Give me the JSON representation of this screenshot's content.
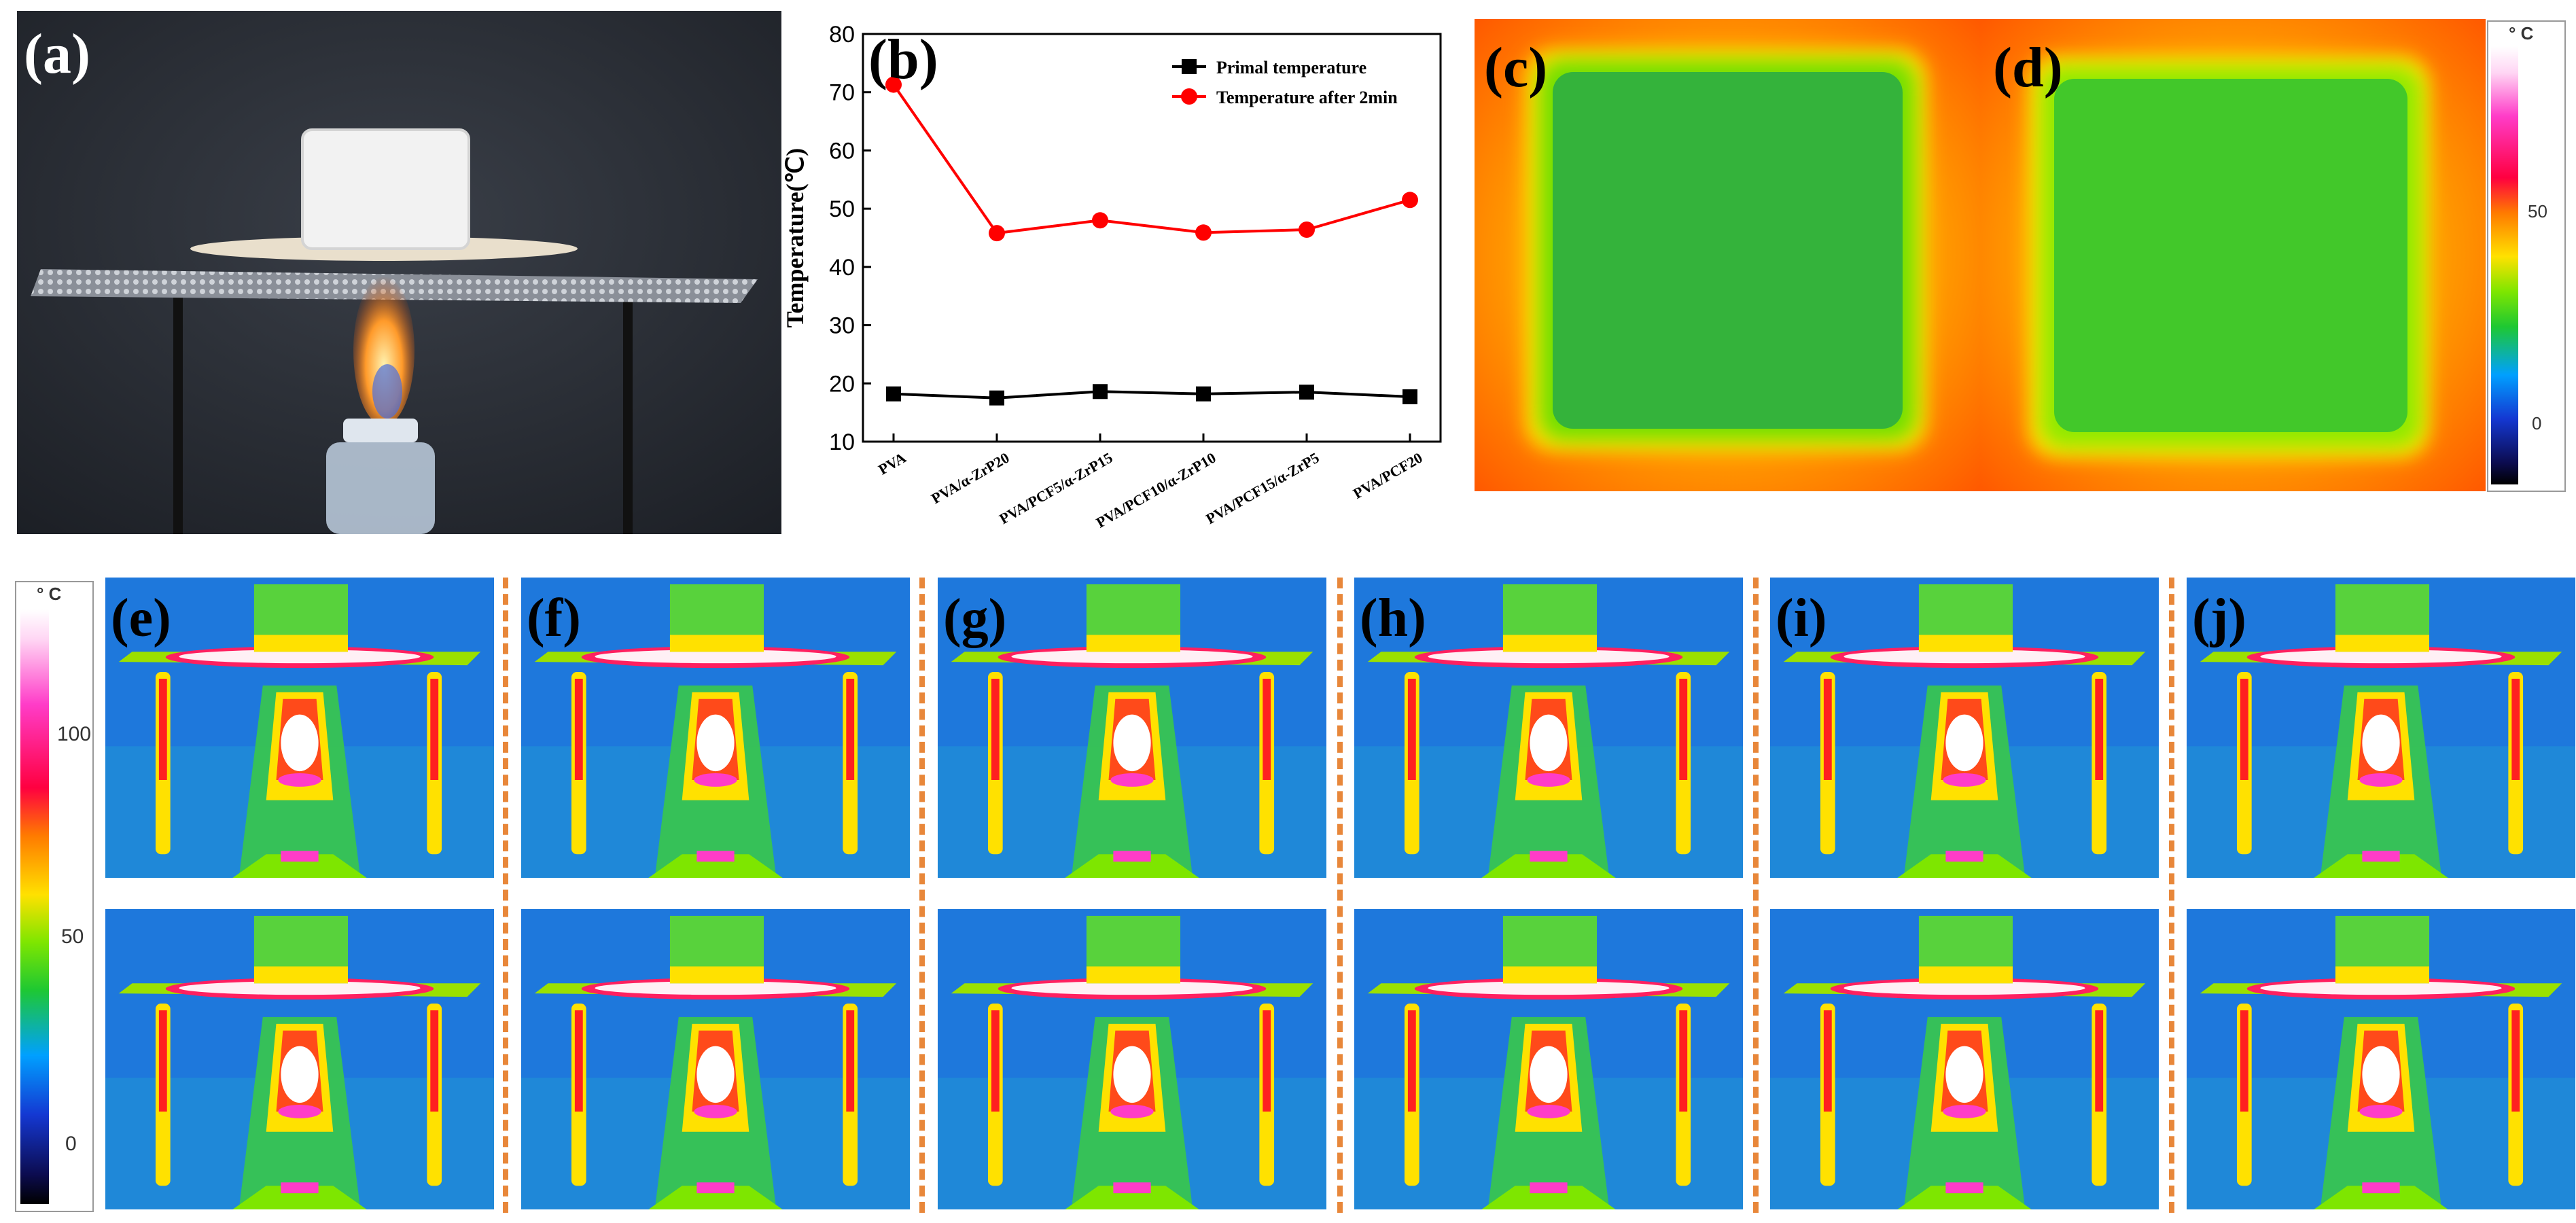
{
  "panels": {
    "a": "(a)",
    "b": "(b)",
    "c": "(c)",
    "d": "(d)",
    "e": "(e)",
    "f": "(f)",
    "g": "(g)",
    "h": "(h)",
    "i": "(i)",
    "j": "(j)"
  },
  "colorbar_top": {
    "unit": "° C",
    "ticks": [
      "50",
      "0"
    ]
  },
  "colorbar_left": {
    "unit": "° C",
    "ticks": [
      "100",
      "50",
      "0"
    ]
  },
  "chart_data": {
    "type": "line",
    "title": "",
    "xlabel": "",
    "ylabel": "Temperature(℃)",
    "ylim": [
      10,
      80
    ],
    "yticks": [
      10,
      20,
      30,
      40,
      50,
      60,
      70,
      80
    ],
    "categories": [
      "PVA",
      "PVA/α-ZrP20",
      "PVA/PCF5/α-ZrP15",
      "PVA/PCF10/α-ZrP10",
      "PVA/PCF15/α-ZrP5",
      "PVA/PCF20"
    ],
    "series": [
      {
        "name": "Primal temperature",
        "color": "#000000",
        "marker": "square",
        "values": [
          18.2,
          17.5,
          18.6,
          18.2,
          18.5,
          17.7
        ]
      },
      {
        "name": "Temperature after 2min",
        "color": "#ff0000",
        "marker": "circle",
        "values": [
          71.3,
          45.8,
          48.0,
          45.9,
          46.4,
          51.5
        ]
      }
    ],
    "legend": "top-right"
  }
}
